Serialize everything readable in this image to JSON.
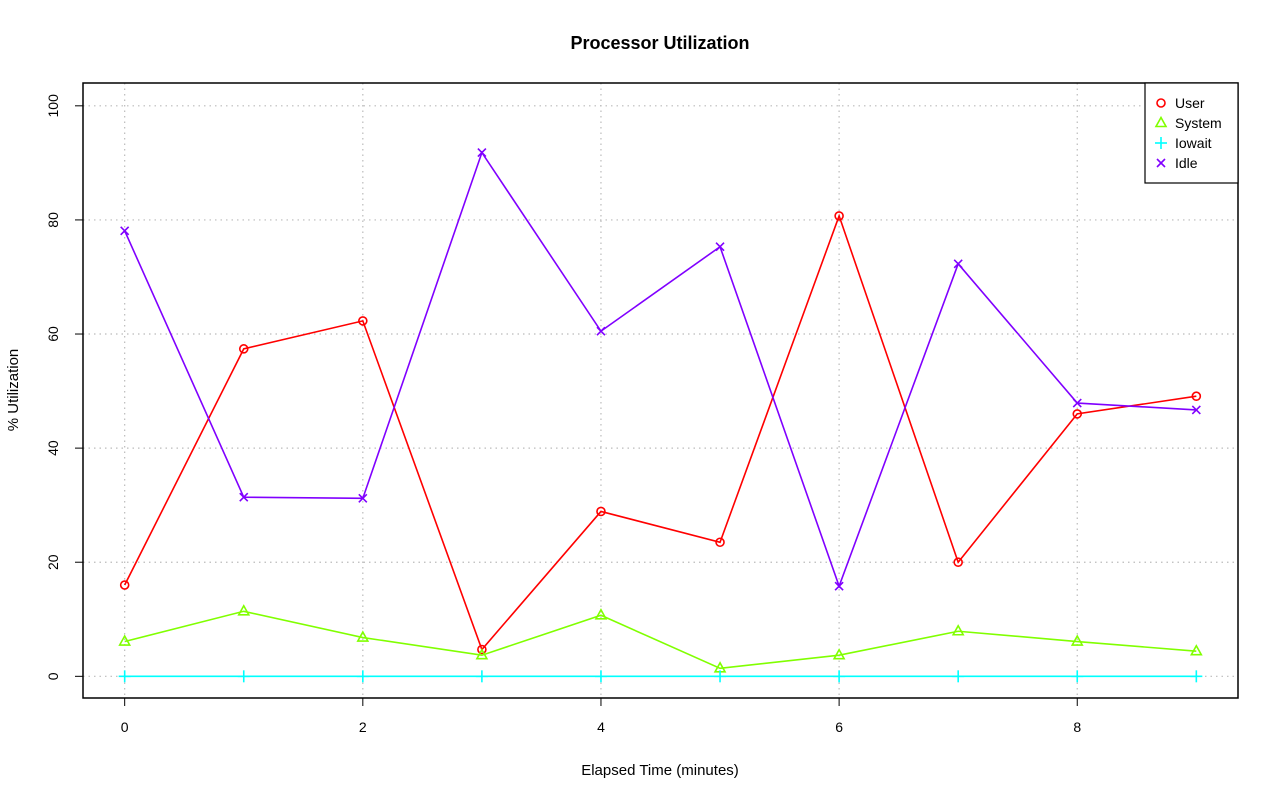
{
  "chart_data": {
    "type": "line",
    "title": "Processor Utilization",
    "xlabel": "Elapsed Time (minutes)",
    "ylabel": "% Utilization",
    "xlim": [
      -0.35,
      9.35
    ],
    "ylim": [
      -3.8,
      104
    ],
    "xticks": [
      0,
      2,
      4,
      6,
      8
    ],
    "yticks": [
      0,
      20,
      40,
      60,
      80,
      100
    ],
    "grid": true,
    "legend_position": "top-right",
    "x": [
      0,
      1,
      2,
      3,
      4,
      5,
      6,
      7,
      8,
      9
    ],
    "series": [
      {
        "name": "User",
        "color": "#FF0000",
        "marker": "circle",
        "values": [
          16.0,
          57.4,
          62.3,
          4.7,
          28.9,
          23.5,
          80.7,
          20.0,
          46.0,
          49.1
        ]
      },
      {
        "name": "System",
        "color": "#80FF00",
        "marker": "triangle",
        "values": [
          6.1,
          11.4,
          6.8,
          3.7,
          10.7,
          1.4,
          3.7,
          7.9,
          6.1,
          4.4
        ]
      },
      {
        "name": "Iowait",
        "color": "#00FFFF",
        "marker": "plus",
        "values": [
          0,
          0,
          0,
          0,
          0,
          0,
          0,
          0,
          0,
          0
        ]
      },
      {
        "name": "Idle",
        "color": "#8000FF",
        "marker": "cross",
        "values": [
          78.1,
          31.4,
          31.2,
          91.8,
          60.5,
          75.3,
          15.8,
          72.3,
          47.9,
          46.7
        ]
      }
    ]
  }
}
